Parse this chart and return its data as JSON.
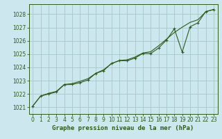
{
  "title": "Graphe pression niveau de la mer (hPa)",
  "bg_color": "#cce8ee",
  "grid_color": "#aacccc",
  "line_color": "#2d5a1b",
  "spine_color": "#2d5a1b",
  "x_ticks": [
    0,
    1,
    2,
    3,
    4,
    5,
    6,
    7,
    8,
    9,
    10,
    11,
    12,
    13,
    14,
    15,
    16,
    17,
    18,
    19,
    20,
    21,
    22,
    23
  ],
  "y_ticks": [
    1021,
    1022,
    1023,
    1024,
    1025,
    1026,
    1027,
    1028
  ],
  "ylim": [
    1020.5,
    1028.75
  ],
  "xlim": [
    -0.5,
    23.5
  ],
  "data_y": [
    1021.1,
    1021.85,
    1022.0,
    1022.15,
    1022.7,
    1022.72,
    1022.85,
    1023.05,
    1023.55,
    1023.75,
    1024.3,
    1024.5,
    1024.5,
    1024.7,
    1025.05,
    1025.05,
    1025.45,
    1026.05,
    1026.9,
    1025.15,
    1027.05,
    1027.35,
    1028.2,
    1028.35
  ],
  "trend_y": [
    1021.1,
    1021.85,
    1022.05,
    1022.2,
    1022.72,
    1022.78,
    1022.95,
    1023.15,
    1023.55,
    1023.82,
    1024.28,
    1024.52,
    1024.57,
    1024.78,
    1025.08,
    1025.18,
    1025.62,
    1026.12,
    1026.62,
    1027.02,
    1027.38,
    1027.58,
    1028.18,
    1028.35
  ],
  "tick_fontsize": 5.5,
  "xlabel_fontsize": 6.5,
  "figsize": [
    3.2,
    2.0
  ],
  "dpi": 100
}
